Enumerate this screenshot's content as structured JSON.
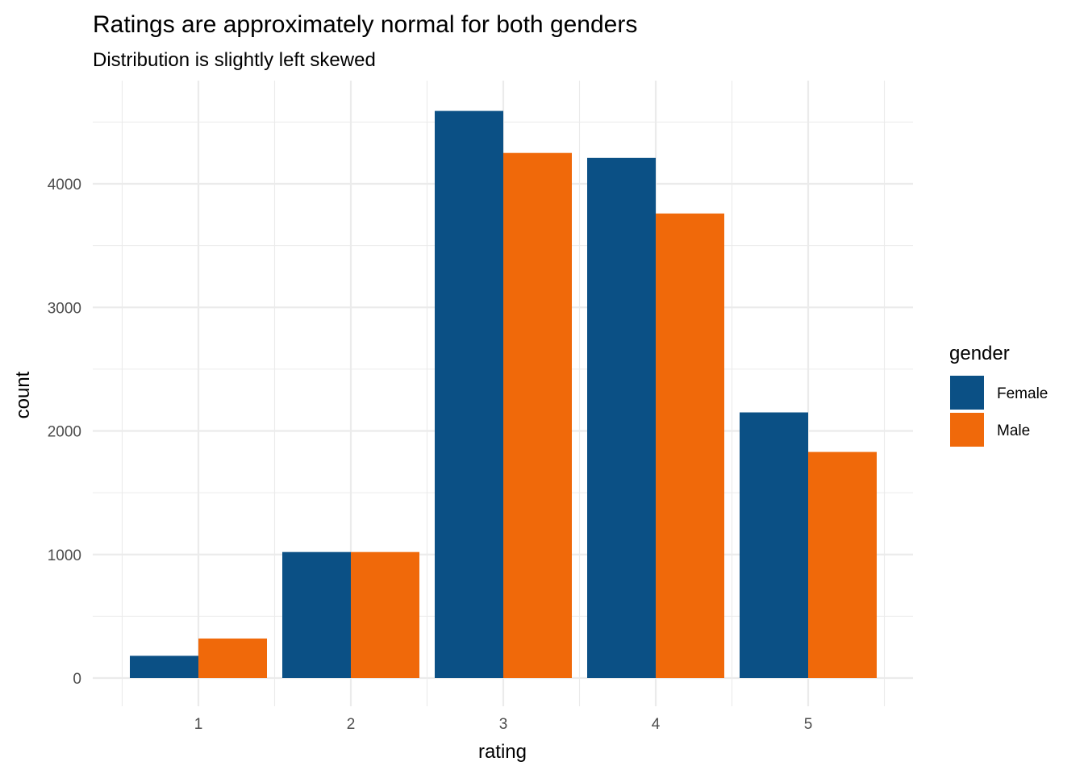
{
  "chart_data": {
    "type": "bar",
    "title": "Ratings are approximately normal for both genders",
    "subtitle": "Distribution is slightly left skewed",
    "xlabel": "rating",
    "ylabel": "count",
    "categories": [
      "1",
      "2",
      "3",
      "4",
      "5"
    ],
    "series": [
      {
        "name": "Female",
        "color": "#0b5085",
        "values": [
          180,
          1020,
          4590,
          4210,
          2150
        ]
      },
      {
        "name": "Male",
        "color": "#f0690a",
        "values": [
          320,
          1020,
          4250,
          3760,
          1830
        ]
      }
    ],
    "ylim": [
      -180,
      4850
    ],
    "yticks": [
      0,
      1000,
      2000,
      3000,
      4000
    ],
    "grid": true,
    "legend": {
      "title": "gender",
      "position": "right"
    }
  }
}
